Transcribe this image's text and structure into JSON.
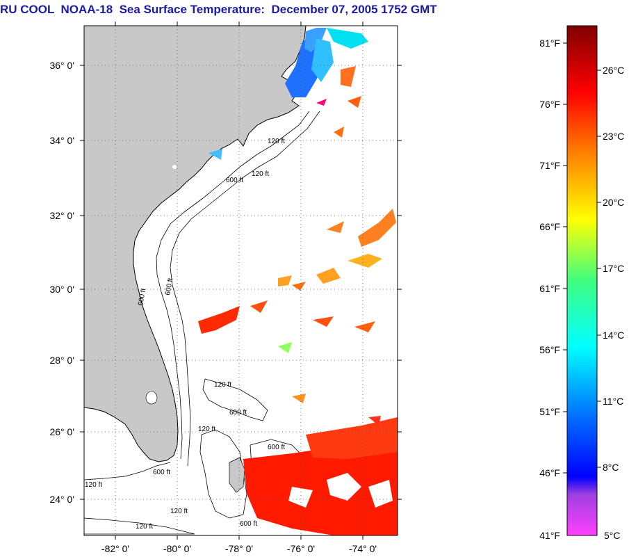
{
  "title": "RU COOL  NOAA-18  Sea Surface Temperature:  December 07, 2005 1752 GMT",
  "map": {
    "lat_labels": [
      "36° 0'",
      "34° 0'",
      "32° 0'",
      "30° 0'",
      "28° 0'",
      "26° 0'",
      "24° 0'"
    ],
    "lon_labels": [
      "-82° 0'",
      "-80° 0'",
      "-78° 0'",
      "-76° 0'",
      "-74° 0'"
    ],
    "contour_labels": [
      "120 ft",
      "600 ft",
      "120 ft",
      "600 ft",
      "600 ft",
      "120 ft",
      "600 ft",
      "120 ft",
      "600 ft",
      "120 ft",
      "600 ft",
      "120 ft",
      "600 ft",
      "120 ft"
    ],
    "land_color": "#c8c8c8",
    "grid": "dotted"
  },
  "colorbar": {
    "fahrenheit_labels": [
      "81°F",
      "76°F",
      "71°F",
      "66°F",
      "61°F",
      "56°F",
      "51°F",
      "46°F",
      "41°F"
    ],
    "celsius_labels": [
      "26°C",
      "23°C",
      "20°C",
      "17°C",
      "14°C",
      "11°C",
      "8°C",
      "5°C"
    ],
    "colors": [
      "#800000",
      "#ff0000",
      "#ff8000",
      "#ffff00",
      "#00ff80",
      "#00ffff",
      "#0080ff",
      "#0000ff",
      "#8040c0",
      "#ff40ff"
    ]
  }
}
